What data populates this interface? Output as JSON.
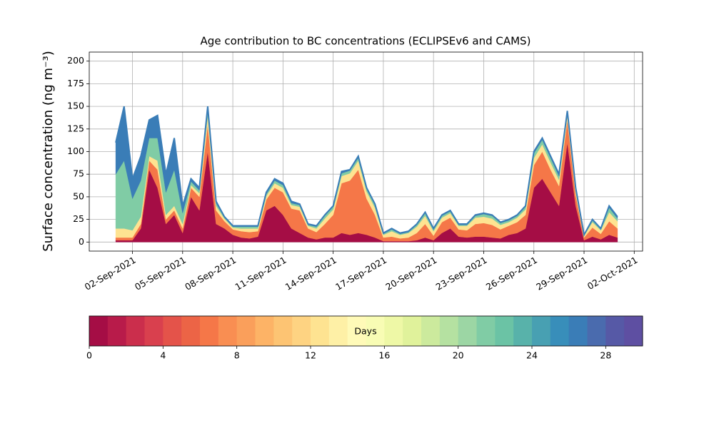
{
  "chart_data": {
    "type": "stackedarea",
    "title": "Age contribution to BC concentrations (ECLIPSEv6 and CAMS)",
    "ylabel": "Surface concentration (ng m⁻³)",
    "x": [
      "2021-09-01T00:00",
      "2021-09-01T12:00",
      "2021-09-02T00:00",
      "2021-09-02T12:00",
      "2021-09-03T00:00",
      "2021-09-03T12:00",
      "2021-09-04T00:00",
      "2021-09-04T12:00",
      "2021-09-05T00:00",
      "2021-09-05T12:00",
      "2021-09-06T00:00",
      "2021-09-06T12:00",
      "2021-09-07T00:00",
      "2021-09-07T12:00",
      "2021-09-08T00:00",
      "2021-09-08T12:00",
      "2021-09-09T00:00",
      "2021-09-09T12:00",
      "2021-09-10T00:00",
      "2021-09-10T12:00",
      "2021-09-11T00:00",
      "2021-09-11T12:00",
      "2021-09-12T00:00",
      "2021-09-12T12:00",
      "2021-09-13T00:00",
      "2021-09-13T12:00",
      "2021-09-14T00:00",
      "2021-09-14T12:00",
      "2021-09-15T00:00",
      "2021-09-15T12:00",
      "2021-09-16T00:00",
      "2021-09-16T12:00",
      "2021-09-17T00:00",
      "2021-09-17T12:00",
      "2021-09-18T00:00",
      "2021-09-18T12:00",
      "2021-09-19T00:00",
      "2021-09-19T12:00",
      "2021-09-20T00:00",
      "2021-09-20T12:00",
      "2021-09-21T00:00",
      "2021-09-21T12:00",
      "2021-09-22T00:00",
      "2021-09-22T12:00",
      "2021-09-23T00:00",
      "2021-09-23T12:00",
      "2021-09-24T00:00",
      "2021-09-24T12:00",
      "2021-09-25T00:00",
      "2021-09-25T12:00",
      "2021-09-26T00:00",
      "2021-09-26T12:00",
      "2021-09-27T00:00",
      "2021-09-27T12:00",
      "2021-09-28T00:00",
      "2021-09-28T12:00",
      "2021-09-29T00:00",
      "2021-09-29T12:00",
      "2021-09-30T00:00",
      "2021-09-30T12:00",
      "2021-10-01T00:00"
    ],
    "series": [
      {
        "color": "#a50d45",
        "values": [
          2,
          2,
          2,
          15,
          80,
          60,
          20,
          30,
          10,
          50,
          35,
          100,
          20,
          15,
          8,
          5,
          4,
          6,
          35,
          40,
          30,
          15,
          10,
          5,
          3,
          5,
          5,
          10,
          8,
          10,
          8,
          5,
          1,
          1,
          1,
          1,
          2,
          5,
          2,
          10,
          15,
          6,
          5,
          6,
          6,
          5,
          4,
          8,
          10,
          15,
          60,
          70,
          55,
          40,
          110,
          40,
          2,
          6,
          3,
          8,
          5
        ]
      },
      {
        "color": "#f57748",
        "values": [
          3,
          3,
          3,
          5,
          10,
          20,
          5,
          5,
          5,
          10,
          15,
          30,
          15,
          8,
          6,
          7,
          7,
          6,
          12,
          20,
          25,
          22,
          25,
          10,
          8,
          15,
          25,
          55,
          60,
          70,
          40,
          25,
          4,
          5,
          3,
          4,
          8,
          15,
          5,
          12,
          12,
          8,
          8,
          14,
          15,
          14,
          10,
          10,
          12,
          15,
          25,
          30,
          25,
          22,
          25,
          12,
          3,
          10,
          6,
          15,
          10
        ]
      },
      {
        "color": "#fee391",
        "values": [
          10,
          10,
          8,
          8,
          5,
          10,
          5,
          5,
          5,
          3,
          4,
          10,
          5,
          3,
          2,
          3,
          4,
          3,
          4,
          5,
          5,
          4,
          4,
          3,
          4,
          6,
          6,
          8,
          8,
          10,
          8,
          8,
          3,
          6,
          4,
          5,
          7,
          9,
          5,
          5,
          5,
          4,
          5,
          7,
          7,
          7,
          5,
          4,
          5,
          6,
          8,
          8,
          8,
          7,
          5,
          4,
          2,
          6,
          4,
          10,
          8
        ]
      },
      {
        "color": "#80cca5",
        "values": [
          60,
          75,
          35,
          40,
          20,
          25,
          25,
          40,
          12,
          4,
          3,
          5,
          3,
          1,
          1,
          2,
          2,
          2,
          2,
          3,
          3,
          2,
          2,
          1,
          2,
          3,
          3,
          3,
          3,
          3,
          3,
          3,
          1,
          2,
          1,
          1,
          2,
          3,
          2,
          2,
          2,
          1,
          1,
          2,
          3,
          3,
          2,
          2,
          2,
          3,
          5,
          5,
          5,
          4,
          3,
          2,
          1,
          2,
          1,
          5,
          3
        ]
      },
      {
        "color": "#3a7db7",
        "values": [
          35,
          60,
          22,
          27,
          20,
          25,
          20,
          35,
          8,
          3,
          3,
          5,
          2,
          1,
          1,
          1,
          1,
          1,
          2,
          2,
          2,
          2,
          1,
          1,
          1,
          1,
          1,
          2,
          1,
          2,
          1,
          1,
          1,
          1,
          1,
          1,
          1,
          1,
          1,
          1,
          1,
          1,
          1,
          1,
          1,
          1,
          1,
          1,
          1,
          1,
          2,
          2,
          2,
          2,
          2,
          2,
          0,
          1,
          1,
          2,
          2
        ]
      }
    ],
    "xlim": [
      "2021-08-30T10:00",
      "2021-10-02T12:00"
    ],
    "xticks": [
      {
        "value": "2021-09-02T00:00",
        "label": "02-Sep-2021"
      },
      {
        "value": "2021-09-05T00:00",
        "label": "05-Sep-2021"
      },
      {
        "value": "2021-09-08T00:00",
        "label": "08-Sep-2021"
      },
      {
        "value": "2021-09-11T00:00",
        "label": "11-Sep-2021"
      },
      {
        "value": "2021-09-14T00:00",
        "label": "14-Sep-2021"
      },
      {
        "value": "2021-09-17T00:00",
        "label": "17-Sep-2021"
      },
      {
        "value": "2021-09-20T00:00",
        "label": "20-Sep-2021"
      },
      {
        "value": "2021-09-23T00:00",
        "label": "23-Sep-2021"
      },
      {
        "value": "2021-09-26T00:00",
        "label": "26-Sep-2021"
      },
      {
        "value": "2021-09-29T00:00",
        "label": "29-Sep-2021"
      },
      {
        "value": "2021-10-02T00:00",
        "label": "02-Oct-2021"
      }
    ],
    "ylim": [
      -10,
      210
    ],
    "yticks": [
      0,
      25,
      50,
      75,
      100,
      125,
      150,
      175,
      200
    ],
    "grid": true,
    "colorbar": {
      "label": "Days",
      "lim": [
        0,
        30
      ],
      "ticks": [
        0,
        4,
        8,
        12,
        16,
        20,
        24,
        28
      ],
      "colors": [
        "#a50d45",
        "#b81b4a",
        "#cb2e4c",
        "#d9404e",
        "#e4534a",
        "#ec6446",
        "#f57748",
        "#f98e52",
        "#fa9f5b",
        "#fdb366",
        "#fdc473",
        "#fed382",
        "#fee391",
        "#fef0a6",
        "#fffab8",
        "#f8fcb4",
        "#eef8a6",
        "#e0f29b",
        "#ccea9d",
        "#b5e1a1",
        "#9cd6a4",
        "#80cca5",
        "#6bc3a5",
        "#58b2aa",
        "#48a0b2",
        "#388eba",
        "#3a7db7",
        "#4a6bae",
        "#5659a6",
        "#5e4fa2"
      ]
    }
  }
}
